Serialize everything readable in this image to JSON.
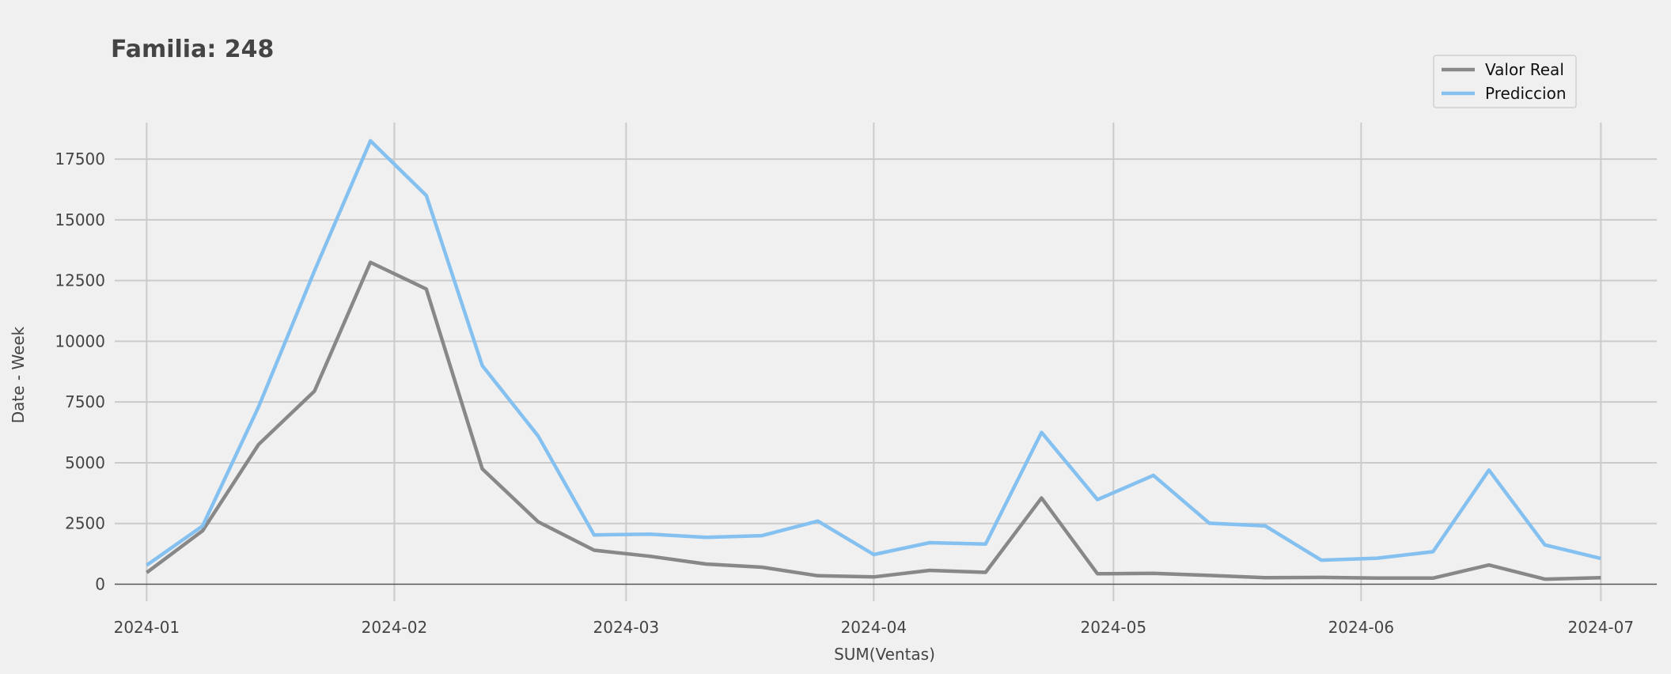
{
  "chart_data": {
    "type": "line",
    "title": "Familia: 248",
    "xlabel": "SUM(Ventas)",
    "ylabel": "Date - Week",
    "x": [
      "2024-01-01",
      "2024-01-08",
      "2024-01-15",
      "2024-01-22",
      "2024-01-29",
      "2024-02-05",
      "2024-02-12",
      "2024-02-19",
      "2024-02-26",
      "2024-03-04",
      "2024-03-11",
      "2024-03-18",
      "2024-03-25",
      "2024-04-01",
      "2024-04-08",
      "2024-04-15",
      "2024-04-22",
      "2024-04-29",
      "2024-05-06",
      "2024-05-13",
      "2024-05-20",
      "2024-05-27",
      "2024-06-03",
      "2024-06-10",
      "2024-06-17",
      "2024-06-24",
      "2024-07-01"
    ],
    "x_ticks": [
      "2024-01",
      "2024-02",
      "2024-03",
      "2024-04",
      "2024-05",
      "2024-06",
      "2024-07"
    ],
    "x_tick_dates": [
      "2024-01-01",
      "2024-02-01",
      "2024-03-01",
      "2024-04-01",
      "2024-05-01",
      "2024-06-01",
      "2024-07-01"
    ],
    "xlim": [
      "2023-12-28",
      "2024-07-08"
    ],
    "ylim": [
      -700,
      19000
    ],
    "y_ticks": [
      0,
      2500,
      5000,
      7500,
      10000,
      12500,
      15000,
      17500
    ],
    "grid": true,
    "legend_position": "top-right",
    "series": [
      {
        "name": "Valor Real",
        "color": "#888888",
        "values": [
          480,
          2200,
          5750,
          7950,
          13250,
          12150,
          4750,
          2570,
          1400,
          1150,
          830,
          700,
          350,
          300,
          570,
          490,
          3550,
          430,
          450,
          360,
          270,
          280,
          250,
          250,
          790,
          210,
          270
        ]
      },
      {
        "name": "Prediccion",
        "color": "#85c1f0",
        "values": [
          780,
          2400,
          7300,
          12900,
          18250,
          16000,
          9000,
          6100,
          2030,
          2060,
          1930,
          2000,
          2600,
          1220,
          1710,
          1650,
          6250,
          3480,
          4480,
          2510,
          2400,
          990,
          1070,
          1340,
          4700,
          1620,
          1060
        ]
      }
    ]
  }
}
